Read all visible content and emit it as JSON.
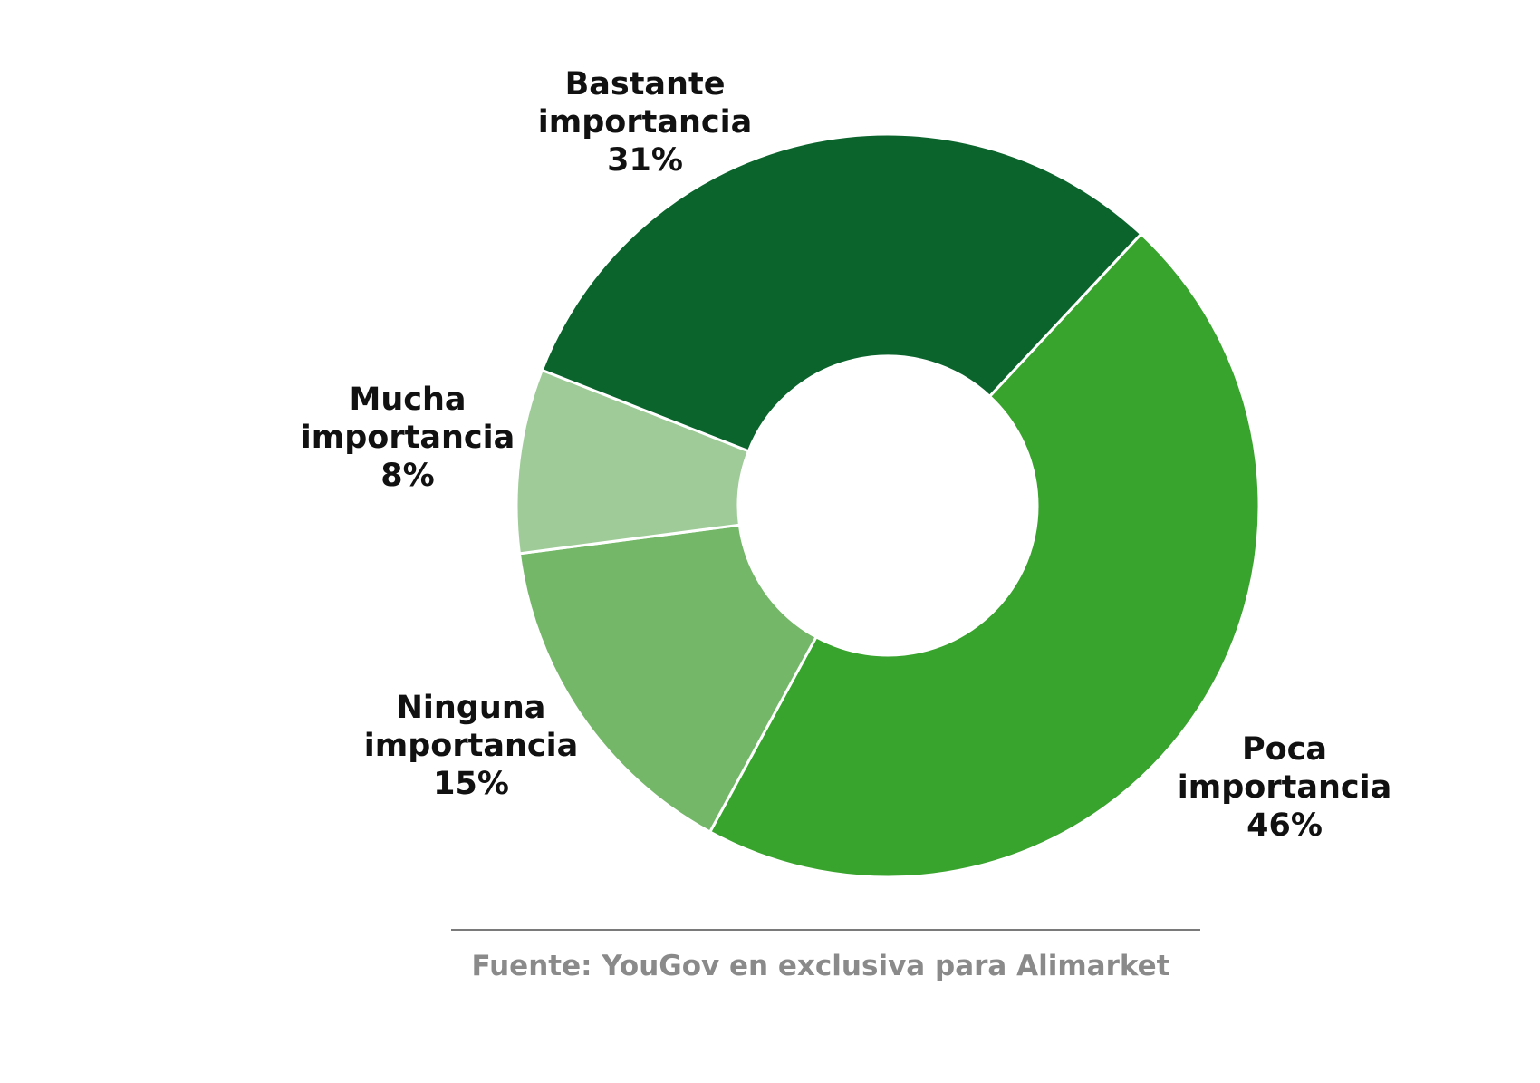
{
  "chart_data": {
    "type": "pie",
    "donut": true,
    "slices": [
      {
        "label_lines": [
          "Poca",
          "importancia"
        ],
        "value": 46,
        "value_label": "46%",
        "color": "#38a32d"
      },
      {
        "label_lines": [
          "Ninguna",
          "importancia"
        ],
        "value": 15,
        "value_label": "15%",
        "color": "#74b769"
      },
      {
        "label_lines": [
          "Mucha",
          "importancia"
        ],
        "value": 8,
        "value_label": "8%",
        "color": "#9ecb97"
      },
      {
        "label_lines": [
          "Bastante",
          "importancia"
        ],
        "value": 31,
        "value_label": "31%",
        "color": "#0a642c"
      }
    ],
    "legend": "none"
  },
  "source": {
    "text": "Fuente: YouGov en exclusiva para Alimarket"
  }
}
